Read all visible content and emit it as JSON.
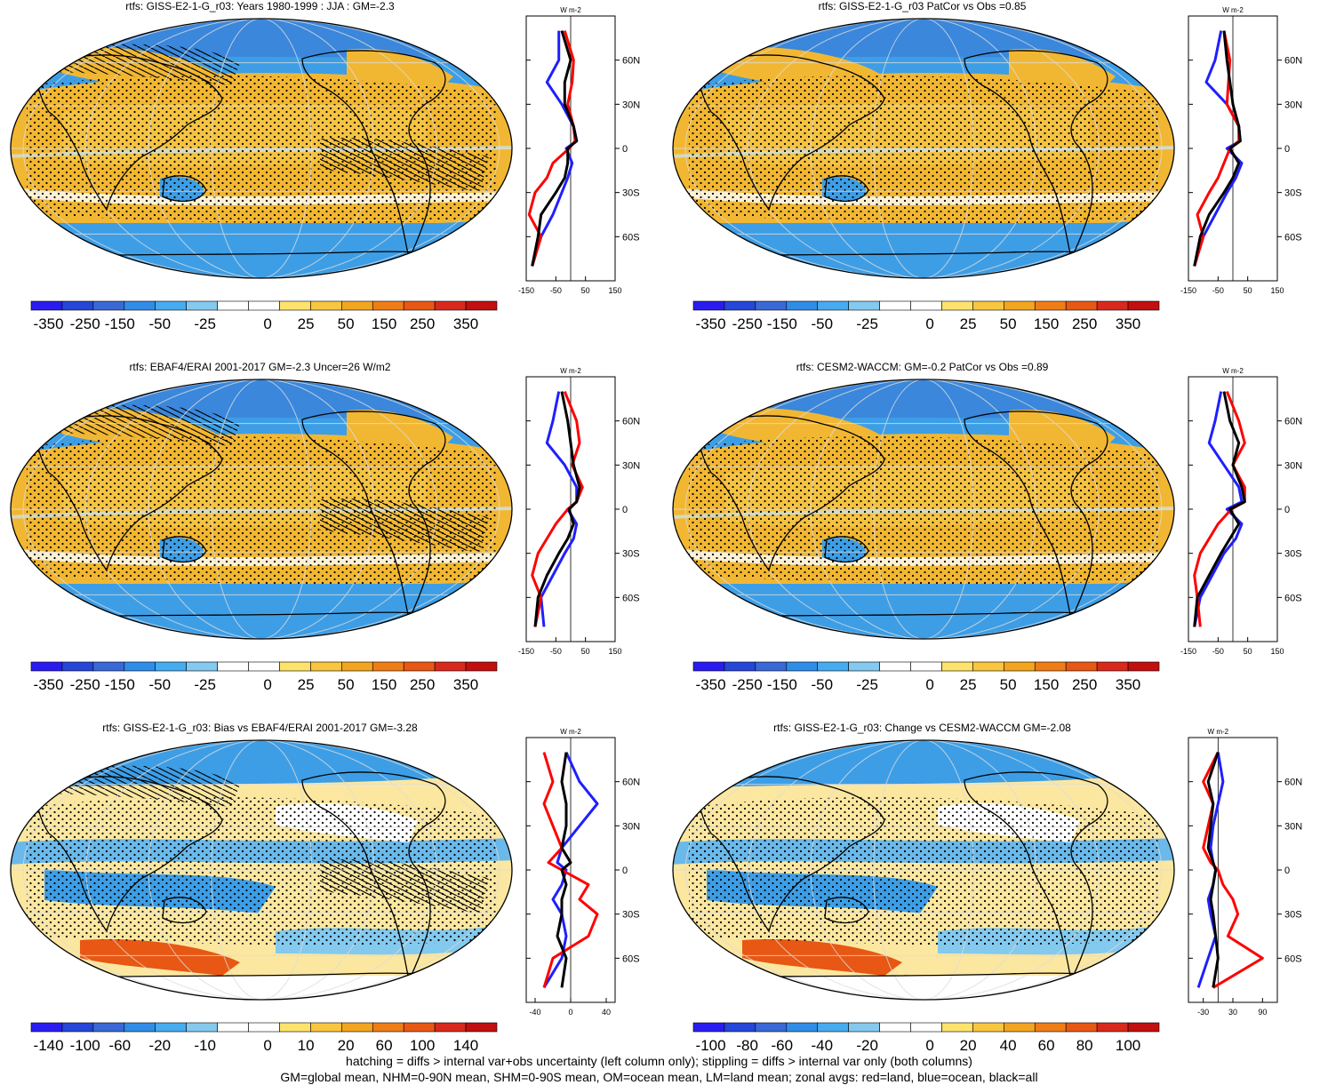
{
  "panels": [
    {
      "title": "rtfs: GISS-E2-1-G_r03: Years 1980-1999 : JJA : GM=-2.3",
      "colorbar": [
        "-350",
        "-250",
        "-150",
        "-50",
        "-25",
        "0",
        "25",
        "50",
        "150",
        "250",
        "350"
      ],
      "zonal": {
        "units": "W m-2",
        "lat_labels": [
          "60N",
          "30N",
          "0",
          "30S",
          "60S"
        ],
        "x_ticks": [
          "-150",
          "-50",
          "50",
          "150"
        ]
      },
      "hatching": true,
      "palette": "full"
    },
    {
      "title": "rtfs: GISS-E2-1-G_r03 PatCor vs Obs =0.85",
      "colorbar": [
        "-350",
        "-250",
        "-150",
        "-50",
        "-25",
        "0",
        "25",
        "50",
        "150",
        "250",
        "350"
      ],
      "zonal": {
        "units": "W m-2",
        "lat_labels": [
          "60N",
          "30N",
          "0",
          "30S",
          "60S"
        ],
        "x_ticks": [
          "-150",
          "-50",
          "50",
          "150"
        ]
      },
      "hatching": false,
      "palette": "full"
    },
    {
      "title": "rtfs: EBAF4/ERAI 2001-2017 GM=-2.3 Uncer=26 W/m2",
      "colorbar": [
        "-350",
        "-250",
        "-150",
        "-50",
        "-25",
        "0",
        "25",
        "50",
        "150",
        "250",
        "350"
      ],
      "zonal": {
        "units": "W m-2",
        "lat_labels": [
          "60N",
          "30N",
          "0",
          "30S",
          "60S"
        ],
        "x_ticks": [
          "-150",
          "-50",
          "50",
          "150"
        ]
      },
      "hatching": true,
      "palette": "full"
    },
    {
      "title": "rtfs: CESM2-WACCM: GM=-0.2 PatCor vs Obs =0.89",
      "colorbar": [
        "-350",
        "-250",
        "-150",
        "-50",
        "-25",
        "0",
        "25",
        "50",
        "150",
        "250",
        "350"
      ],
      "zonal": {
        "units": "W m-2",
        "lat_labels": [
          "60N",
          "30N",
          "0",
          "30S",
          "60S"
        ],
        "x_ticks": [
          "-150",
          "-50",
          "50",
          "150"
        ]
      },
      "hatching": false,
      "palette": "full"
    },
    {
      "title": "rtfs: GISS-E2-1-G_r03: Bias vs EBAF4/ERAI 2001-2017 GM=-3.28",
      "colorbar": [
        "-140",
        "-100",
        "-60",
        "-20",
        "-10",
        "0",
        "10",
        "20",
        "60",
        "100",
        "140"
      ],
      "zonal": {
        "units": "W m-2",
        "lat_labels": [
          "60N",
          "30N",
          "0",
          "30S",
          "60S"
        ],
        "x_ticks": [
          "-40",
          "0",
          "40"
        ]
      },
      "hatching": true,
      "palette": "diff"
    },
    {
      "title": "rtfs: GISS-E2-1-G_r03: Change vs CESM2-WACCM GM=-2.08",
      "colorbar": [
        "-100",
        "-80",
        "-60",
        "-40",
        "-20",
        "0",
        "20",
        "40",
        "60",
        "80",
        "100"
      ],
      "zonal": {
        "units": "W m-2",
        "lat_labels": [
          "60N",
          "30N",
          "0",
          "30S",
          "60S"
        ],
        "x_ticks": [
          "-30",
          "30",
          "90"
        ]
      },
      "hatching": false,
      "palette": "diff"
    }
  ],
  "footer": {
    "line1": "hatching = diffs > internal var+obs uncertainty (left column only); stippling = diffs > internal var only (both columns)",
    "line2": "GM=global mean, NHM=0-90N mean, SHM=0-90S mean, OM=ocean mean, LM=land mean; zonal avgs: red=land, blue=ocean, black=all"
  },
  "colors": {
    "land_line": "#ff0000",
    "ocean_line": "#1f1fff",
    "all_line": "#000000",
    "ocean_fill": "#3d9ee6",
    "warm_fill": "#f2b732"
  },
  "chart_data": [
    {
      "type": "heatmap",
      "title": "rtfs: GISS-E2-1-G_r03: Years 1980-1999 : JJA : GM=-2.3",
      "colorbar_levels": [
        -350,
        -250,
        -150,
        -50,
        -25,
        0,
        25,
        50,
        150,
        250,
        350
      ],
      "zonal_profile": {
        "xlim": [
          -150,
          150
        ],
        "lat": [
          80,
          60,
          45,
          30,
          15,
          5,
          0,
          -10,
          -20,
          -30,
          -45,
          -60,
          -80
        ],
        "all": [
          -30,
          0,
          -20,
          -20,
          10,
          20,
          -10,
          -10,
          -20,
          -50,
          -100,
          -110,
          -130
        ],
        "land": [
          -20,
          10,
          5,
          -10,
          10,
          15,
          -5,
          -60,
          -80,
          -120,
          -140,
          -100,
          -130
        ],
        "ocean": [
          -40,
          -40,
          -80,
          -30,
          10,
          20,
          -15,
          5,
          -10,
          -30,
          -60,
          -100,
          -130
        ]
      }
    },
    {
      "type": "heatmap",
      "title": "rtfs: GISS-E2-1-G_r03 PatCor vs Obs =0.85",
      "colorbar_levels": [
        -350,
        -250,
        -150,
        -50,
        -25,
        0,
        25,
        50,
        150,
        250,
        350
      ],
      "zonal_profile": {
        "xlim": [
          -150,
          150
        ],
        "lat": [
          80,
          60,
          45,
          30,
          15,
          5,
          0,
          -10,
          -20,
          -30,
          -45,
          -60,
          -80
        ],
        "all": [
          -30,
          -20,
          -10,
          0,
          20,
          25,
          -10,
          20,
          0,
          -30,
          -80,
          -110,
          -130
        ],
        "land": [
          -30,
          -10,
          -15,
          -20,
          20,
          20,
          -10,
          -30,
          -50,
          -80,
          -120,
          -100,
          -130
        ],
        "ocean": [
          -40,
          -60,
          -90,
          -20,
          20,
          25,
          -20,
          30,
          10,
          -20,
          -60,
          -100,
          -130
        ]
      }
    },
    {
      "type": "heatmap",
      "title": "rtfs: EBAF4/ERAI 2001-2017 GM=-2.3 Uncer=26 W/m2",
      "colorbar_levels": [
        -350,
        -250,
        -150,
        -50,
        -25,
        0,
        25,
        50,
        150,
        250,
        350
      ],
      "zonal_profile": {
        "xlim": [
          -150,
          150
        ],
        "lat": [
          80,
          60,
          45,
          30,
          15,
          5,
          0,
          -10,
          -20,
          -30,
          -45,
          -60,
          -80
        ],
        "all": [
          -30,
          -10,
          0,
          10,
          30,
          20,
          -5,
          10,
          -10,
          -40,
          -80,
          -110,
          -120
        ],
        "land": [
          -20,
          20,
          30,
          5,
          40,
          20,
          -10,
          -50,
          -80,
          -110,
          -130,
          -100,
          -120
        ],
        "ocean": [
          -40,
          -60,
          -80,
          -20,
          20,
          20,
          -10,
          20,
          10,
          -20,
          -60,
          -100,
          -90
        ]
      }
    },
    {
      "type": "heatmap",
      "title": "rtfs: CESM2-WACCM: GM=-0.2 PatCor vs Obs =0.89",
      "colorbar_levels": [
        -350,
        -250,
        -150,
        -50,
        -25,
        0,
        25,
        50,
        150,
        250,
        350
      ],
      "zonal_profile": {
        "xlim": [
          -150,
          150
        ],
        "lat": [
          80,
          60,
          45,
          30,
          15,
          5,
          0,
          -10,
          -20,
          -30,
          -45,
          -60,
          -80
        ],
        "all": [
          -30,
          -10,
          20,
          0,
          30,
          40,
          -10,
          20,
          -10,
          -40,
          -80,
          -120,
          -130
        ],
        "land": [
          -20,
          20,
          40,
          0,
          40,
          40,
          -5,
          -50,
          -80,
          -110,
          -130,
          -120,
          -110
        ],
        "ocean": [
          -40,
          -60,
          -80,
          -30,
          20,
          30,
          -20,
          30,
          10,
          -30,
          -70,
          -110,
          -130
        ]
      }
    },
    {
      "type": "heatmap",
      "title": "rtfs: GISS-E2-1-G_r03: Bias vs EBAF4/ERAI 2001-2017 GM=-3.28",
      "colorbar_levels": [
        -140,
        -100,
        -60,
        -20,
        -10,
        0,
        10,
        20,
        60,
        100,
        140
      ],
      "zonal_profile": {
        "xlim": [
          -50,
          50
        ],
        "lat": [
          80,
          60,
          45,
          30,
          15,
          5,
          0,
          -10,
          -20,
          -30,
          -45,
          -60,
          -80
        ],
        "all": [
          -5,
          -10,
          -5,
          -5,
          -10,
          0,
          -10,
          -5,
          -10,
          -10,
          -15,
          -5,
          -10
        ],
        "land": [
          -30,
          -20,
          -30,
          -20,
          -10,
          -25,
          -10,
          20,
          10,
          30,
          20,
          -20,
          -30
        ],
        "ocean": [
          -5,
          10,
          30,
          10,
          -10,
          -15,
          -5,
          -10,
          -20,
          -10,
          -5,
          -10,
          -30
        ]
      }
    },
    {
      "type": "heatmap",
      "title": "rtfs: GISS-E2-1-G_r03: Change vs CESM2-WACCM GM=-2.08",
      "colorbar_levels": [
        -100,
        -80,
        -60,
        -40,
        -20,
        0,
        20,
        40,
        60,
        80,
        100
      ],
      "zonal_profile": {
        "xlim": [
          -60,
          120
        ],
        "lat": [
          80,
          60,
          45,
          30,
          15,
          5,
          0,
          -10,
          -20,
          -30,
          -45,
          -60,
          -80
        ],
        "all": [
          0,
          -20,
          -10,
          -15,
          -20,
          -10,
          -5,
          -10,
          -15,
          -10,
          -5,
          0,
          -10
        ],
        "land": [
          0,
          -30,
          -10,
          -20,
          -30,
          -15,
          0,
          10,
          30,
          40,
          20,
          90,
          -10
        ],
        "ocean": [
          0,
          10,
          0,
          -10,
          -15,
          -10,
          -5,
          -10,
          -20,
          -15,
          -5,
          -20,
          -40
        ]
      }
    }
  ]
}
